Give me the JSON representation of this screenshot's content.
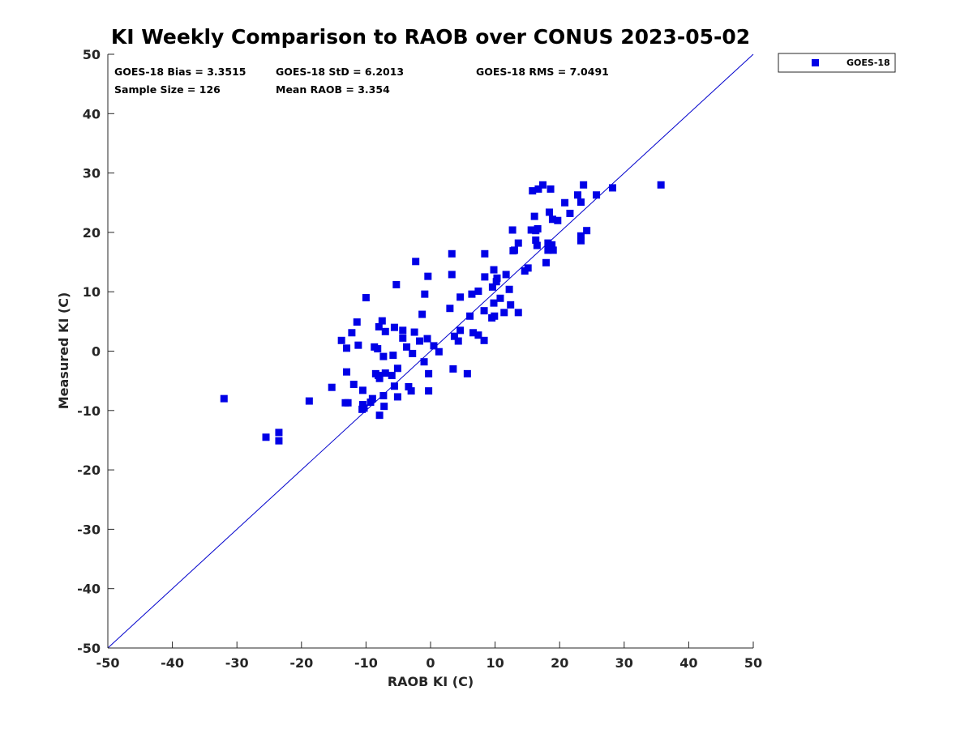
{
  "chart_data": {
    "type": "scatter",
    "title": "KI Weekly Comparison to RAOB over CONUS 2023-05-02",
    "xlabel": "RAOB KI (C)",
    "ylabel": "Measured KI (C)",
    "xlim": [
      -50,
      50
    ],
    "ylim": [
      -50,
      50
    ],
    "x_ticks": [
      -50,
      -40,
      -30,
      -20,
      -10,
      0,
      10,
      20,
      30,
      40,
      50
    ],
    "y_ticks": [
      -50,
      -40,
      -30,
      -20,
      -10,
      0,
      10,
      20,
      30,
      40,
      50
    ],
    "grid": false,
    "legend_position": "outside-top-right",
    "reference_line": {
      "from": [
        -50,
        -50
      ],
      "to": [
        50,
        50
      ],
      "color": "#0000cc"
    },
    "stats": {
      "bias": "GOES-18 Bias = 3.3515",
      "std": "GOES-18 StD = 6.2013",
      "rms": "GOES-18 RMS = 7.0491",
      "sample_size": "Sample Size = 126",
      "mean_raob": "Mean RAOB = 3.354"
    },
    "series": [
      {
        "name": "GOES-18",
        "color": "#0000e6",
        "marker": "square",
        "points": [
          [
            -32,
            -8
          ],
          [
            -25.5,
            -14.5
          ],
          [
            -23.5,
            -13.7
          ],
          [
            -23.5,
            -15.1
          ],
          [
            -18.8,
            -8.4
          ],
          [
            -15.3,
            -6.1
          ],
          [
            -13.8,
            1.8
          ],
          [
            -13.2,
            -8.7
          ],
          [
            -13,
            0.5
          ],
          [
            -13,
            -3.5
          ],
          [
            -12.2,
            3.1
          ],
          [
            -11.9,
            -5.6
          ],
          [
            -11.4,
            4.9
          ],
          [
            -11.2,
            1.0
          ],
          [
            -10.6,
            -9.8
          ],
          [
            -10.5,
            -9.0
          ],
          [
            -10.5,
            -6.6
          ],
          [
            -10.0,
            9.0
          ],
          [
            -9.3,
            -8.6
          ],
          [
            -9.0,
            -8.0
          ],
          [
            -8.7,
            0.7
          ],
          [
            -8.5,
            -3.8
          ],
          [
            -8.2,
            0.4
          ],
          [
            -8.1,
            -4.1
          ],
          [
            -8.0,
            4.1
          ],
          [
            -7.9,
            -4.6
          ],
          [
            -7.9,
            -10.8
          ],
          [
            -7.5,
            5.1
          ],
          [
            -7.3,
            -7.5
          ],
          [
            -7.3,
            -0.9
          ],
          [
            -7.2,
            -9.3
          ],
          [
            -7.0,
            3.3
          ],
          [
            -7.0,
            -3.7
          ],
          [
            -6.0,
            -4.1
          ],
          [
            -5.8,
            -0.7
          ],
          [
            -5.6,
            -5.9
          ],
          [
            -5.6,
            4.0
          ],
          [
            -5.3,
            11.2
          ],
          [
            -5.1,
            -2.9
          ],
          [
            -5.1,
            -7.7
          ],
          [
            -4.3,
            3.5
          ],
          [
            -4.3,
            2.2
          ],
          [
            -3.7,
            0.7
          ],
          [
            -3.4,
            -6.0
          ],
          [
            -3.0,
            -6.7
          ],
          [
            -2.8,
            -0.4
          ],
          [
            -2.5,
            3.2
          ],
          [
            -2.3,
            15.1
          ],
          [
            -1.7,
            1.7
          ],
          [
            -1.3,
            6.2
          ],
          [
            -1.0,
            -1.8
          ],
          [
            -0.9,
            9.6
          ],
          [
            -0.5,
            2.1
          ],
          [
            -0.4,
            12.6
          ],
          [
            -0.3,
            -3.8
          ],
          [
            -0.3,
            -6.7
          ],
          [
            0.5,
            0.9
          ],
          [
            1.3,
            -0.1
          ],
          [
            3.0,
            7.2
          ],
          [
            3.3,
            16.4
          ],
          [
            3.3,
            12.9
          ],
          [
            3.5,
            -3.0
          ],
          [
            3.7,
            2.5
          ],
          [
            4.3,
            1.7
          ],
          [
            4.6,
            9.1
          ],
          [
            4.6,
            3.5
          ],
          [
            5.7,
            -3.8
          ],
          [
            6.1,
            5.9
          ],
          [
            6.4,
            9.6
          ],
          [
            6.6,
            3.1
          ],
          [
            7.4,
            2.7
          ],
          [
            7.4,
            10.1
          ],
          [
            8.3,
            6.8
          ],
          [
            8.3,
            1.8
          ],
          [
            8.4,
            16.4
          ],
          [
            8.4,
            12.5
          ],
          [
            9.5,
            5.6
          ],
          [
            9.6,
            10.8
          ],
          [
            9.8,
            13.7
          ],
          [
            9.8,
            8.1
          ],
          [
            9.9,
            5.9
          ],
          [
            10.2,
            11.7
          ],
          [
            10.3,
            12.3
          ],
          [
            10.8,
            8.9
          ],
          [
            11.4,
            6.5
          ],
          [
            11.7,
            12.9
          ],
          [
            12.2,
            10.4
          ],
          [
            12.4,
            7.8
          ],
          [
            12.7,
            20.4
          ],
          [
            12.8,
            16.9
          ],
          [
            13.6,
            18.2
          ],
          [
            13.6,
            6.5
          ],
          [
            14.6,
            13.5
          ],
          [
            15.1,
            14.0
          ],
          [
            15.6,
            20.4
          ],
          [
            15.8,
            27.0
          ],
          [
            16.1,
            22.7
          ],
          [
            16.3,
            20.3
          ],
          [
            16.3,
            18.7
          ],
          [
            16.5,
            17.8
          ],
          [
            16.6,
            20.6
          ],
          [
            16.7,
            27.3
          ],
          [
            17.4,
            28.0
          ],
          [
            17.9,
            14.9
          ],
          [
            18.2,
            17.0
          ],
          [
            18.2,
            18.2
          ],
          [
            18.4,
            23.4
          ],
          [
            18.6,
            27.3
          ],
          [
            18.8,
            17.9
          ],
          [
            18.9,
            22.2
          ],
          [
            19.0,
            17.0
          ],
          [
            19.7,
            22.0
          ],
          [
            20.8,
            25.0
          ],
          [
            21.6,
            23.2
          ],
          [
            22.8,
            26.3
          ],
          [
            23.3,
            25.1
          ],
          [
            23.3,
            19.4
          ],
          [
            23.3,
            18.6
          ],
          [
            23.7,
            28.0
          ],
          [
            24.2,
            20.3
          ],
          [
            25.7,
            26.3
          ],
          [
            28.2,
            27.5
          ],
          [
            35.7,
            28.0
          ],
          [
            13.0,
            17.0
          ],
          [
            -12.8,
            -8.7
          ],
          [
            -10.3,
            -9.6
          ]
        ]
      }
    ]
  }
}
